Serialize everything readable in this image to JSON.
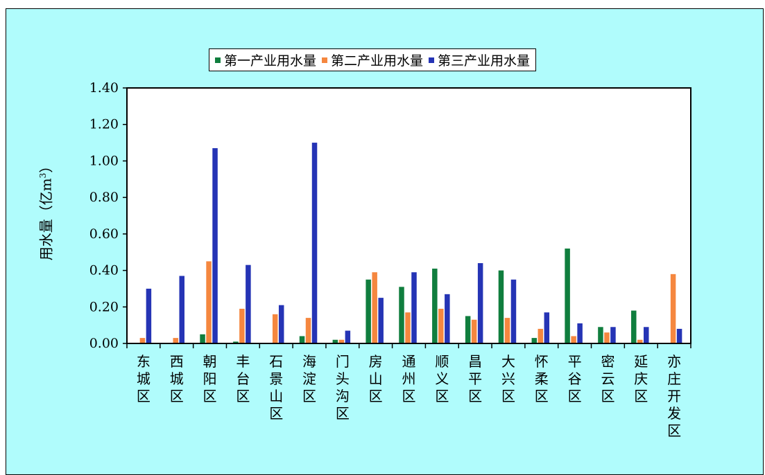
{
  "colors": {
    "background": "#b0fcfc",
    "series": [
      "#107e3e",
      "#f5873f",
      "#2534b5"
    ]
  },
  "chart_data": {
    "type": "bar",
    "ylabel": "用水量（亿m",
    "ylabel_sup": "3",
    "ylabel_close": "）",
    "ylim": [
      0,
      1.4
    ],
    "yticks": [
      "0.00",
      "0.20",
      "0.40",
      "0.60",
      "0.80",
      "1.00",
      "1.20",
      "1.40"
    ],
    "ytick_values": [
      0,
      0.2,
      0.4,
      0.6,
      0.8,
      1.0,
      1.2,
      1.4
    ],
    "legend_position": "top",
    "categories": [
      "东城区",
      "西城区",
      "朝阳区",
      "丰台区",
      "石景山区",
      "海淀区",
      "门头沟区",
      "房山区",
      "通州区",
      "顺义区",
      "昌平区",
      "大兴区",
      "怀柔区",
      "平谷区",
      "密云区",
      "延庆区",
      "亦庄开发区"
    ],
    "series": [
      {
        "name": "第一产业用水量",
        "values": [
          0,
          0,
          0.05,
          0.01,
          0,
          0.04,
          0.02,
          0.35,
          0.31,
          0.41,
          0.15,
          0.4,
          0.03,
          0.52,
          0.09,
          0.18,
          0
        ]
      },
      {
        "name": "第二产业用水量",
        "values": [
          0.03,
          0.03,
          0.45,
          0.19,
          0.16,
          0.14,
          0.02,
          0.39,
          0.17,
          0.19,
          0.13,
          0.14,
          0.08,
          0.04,
          0.06,
          0.02,
          0.38
        ]
      },
      {
        "name": "第三产业用水量",
        "values": [
          0.3,
          0.37,
          1.07,
          0.43,
          0.21,
          1.1,
          0.07,
          0.25,
          0.39,
          0.27,
          0.44,
          0.35,
          0.17,
          0.11,
          0.09,
          0.09,
          0.08
        ]
      }
    ]
  }
}
